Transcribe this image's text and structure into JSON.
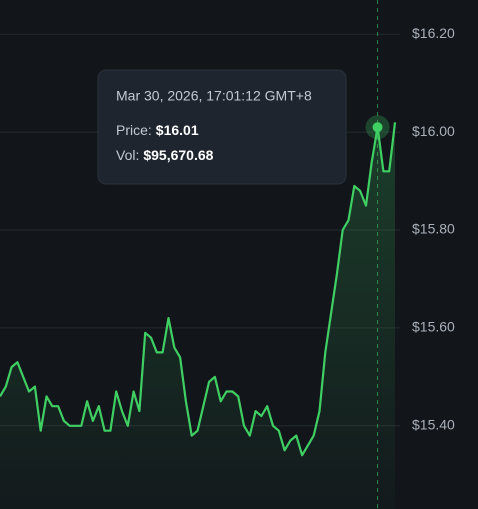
{
  "chart_data": {
    "type": "line",
    "series": [
      {
        "color": "#3fcf63",
        "values": [
          15.46,
          15.48,
          15.52,
          15.53,
          15.5,
          15.47,
          15.48,
          15.39,
          15.46,
          15.44,
          15.44,
          15.41,
          15.4,
          15.4,
          15.4,
          15.45,
          15.41,
          15.44,
          15.39,
          15.39,
          15.47,
          15.43,
          15.4,
          15.47,
          15.43,
          15.59,
          15.58,
          15.55,
          15.55,
          15.62,
          15.56,
          15.54,
          15.45,
          15.38,
          15.39,
          15.44,
          15.49,
          15.5,
          15.45,
          15.47,
          15.47,
          15.46,
          15.4,
          15.38,
          15.43,
          15.42,
          15.44,
          15.4,
          15.39,
          15.35,
          15.37,
          15.38,
          15.34,
          15.36,
          15.38,
          15.43,
          15.55,
          15.63,
          15.71,
          15.8,
          15.82,
          15.89,
          15.88,
          15.85,
          15.94,
          16.01,
          15.92,
          15.92,
          16.02
        ]
      }
    ],
    "ylim": [
      15.23,
      16.27
    ],
    "yticks": [
      {
        "value": 16.2,
        "label": "$16.20"
      },
      {
        "value": 16.0,
        "label": "$16.00"
      },
      {
        "value": 15.8,
        "label": "$15.80"
      },
      {
        "value": 15.6,
        "label": "$15.60"
      },
      {
        "value": 15.4,
        "label": "$15.40"
      }
    ],
    "grid": true,
    "tooltip": {
      "time": "Mar 30, 2026, 17:01:12 GMT+8",
      "price_label": "Price:",
      "price": {
        "value": 16.01,
        "label": "$16.01"
      },
      "vol_label": "Vol:",
      "vol": "$95,670.68"
    }
  }
}
